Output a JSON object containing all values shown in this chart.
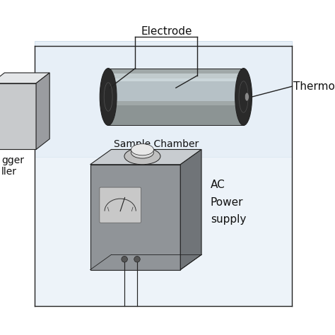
{
  "background_color": "#ffffff",
  "line_color": "#222222",
  "line_width": 1.0,
  "cylinder_body_color": "#a0a8a8",
  "cylinder_end_color": "#2a2a2a",
  "cylinder_glass_color": "#c0ccd4",
  "cylinder_highlight_color": "#dde8ec",
  "cylinder_shadow_color": "#808888",
  "box_left_front": "#c8cacC",
  "box_left_top": "#e4e6e8",
  "box_left_side": "#9a9ca0",
  "box_main_front": "#909498",
  "box_main_top": "#c8ccD0",
  "box_main_side": "#707478",
  "box_main_inner_front": "#787c80",
  "box_main_inner_top": "#b0b4b8",
  "box_main_inner_side": "#606468",
  "knob_outer_color": "#c8c8c8",
  "knob_inner_color": "#e0e0e0",
  "meter_bg_color": "#c0c0c0",
  "meter_arc_color": "#444444",
  "bg_rect_color": "#dce8f4",
  "label_electrode": "Electrode",
  "label_thermocouple": "Thermo",
  "label_sample_chamber": "Sample Chamber",
  "label_ac_power": "AC\nPower\nsupply",
  "label_logger": "gger\nller",
  "fontsize_label": 9,
  "fontsize_annot": 9
}
